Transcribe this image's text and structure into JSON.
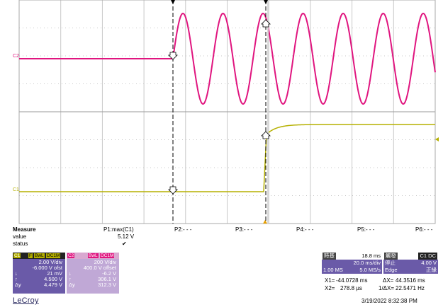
{
  "colors": {
    "c1_trace": "#b5b000",
    "c2_trace": "#e0157f",
    "grid": "#c8c8c8",
    "cursor": "#000000",
    "c1_panel": "#6a5aa8",
    "c2_panel": "#c0a8d6",
    "panel_blue": "#6a5aa8"
  },
  "traces": {
    "c1_label": "C1",
    "c2_label": "C2"
  },
  "measure": {
    "header": "Measure",
    "row_value": "value",
    "row_status": "status",
    "p1_label": "P1:max(C1)",
    "p1_value": "5.12 V",
    "p1_status": "✔",
    "p2_label": "P2:- - -",
    "p3_label": "P3:- - -",
    "p4_label": "P4:- - -",
    "p5_label": "P5:- - -",
    "p6_label": "P6:- - -"
  },
  "c1": {
    "name": "C1",
    "tag1": "F",
    "tag2": "BwL",
    "tag3": "DC1M",
    "vdiv": "2.00 V/div",
    "offset": "-6.000 V ofst",
    "down": "21 mV",
    "up": "4.500 V",
    "delta": "4.479 V",
    "sym_down": "↓",
    "sym_up": "↑",
    "sym_delta": "Δy"
  },
  "c2": {
    "name": "C2",
    "tag1": "BwL",
    "tag2": "DC1M",
    "vdiv": "200 V/div",
    "offset": "400.0 V offset",
    "down": "-6.2 V",
    "up": "306.1 V",
    "delta": "312.3 V",
    "sym_down": "↓",
    "sym_up": "↑",
    "sym_delta": "Δy"
  },
  "timebase": {
    "label": "時基",
    "delay": "18.8 ms",
    "tdiv": "20.0 ms/div",
    "samples": "1.00 MS",
    "rate": "5.0 MS/s"
  },
  "trigger": {
    "label": "觸發",
    "source": "C1 DC",
    "mode": "停止",
    "level": "4.00 V",
    "type": "Edge",
    "slope": "正緣"
  },
  "cursors": {
    "x1_label": "X1=",
    "x1_value": "-44.0728 ms",
    "dx_label": "ΔX=",
    "dx_value": "44.3516 ms",
    "x2_label": "X2=",
    "x2_value": "278.8 µs",
    "inv_label": "1/ΔX=",
    "inv_value": "22.5471 Hz"
  },
  "brand": "LeCroy",
  "timestamp": "3/19/2022 8:32:38 PM"
}
